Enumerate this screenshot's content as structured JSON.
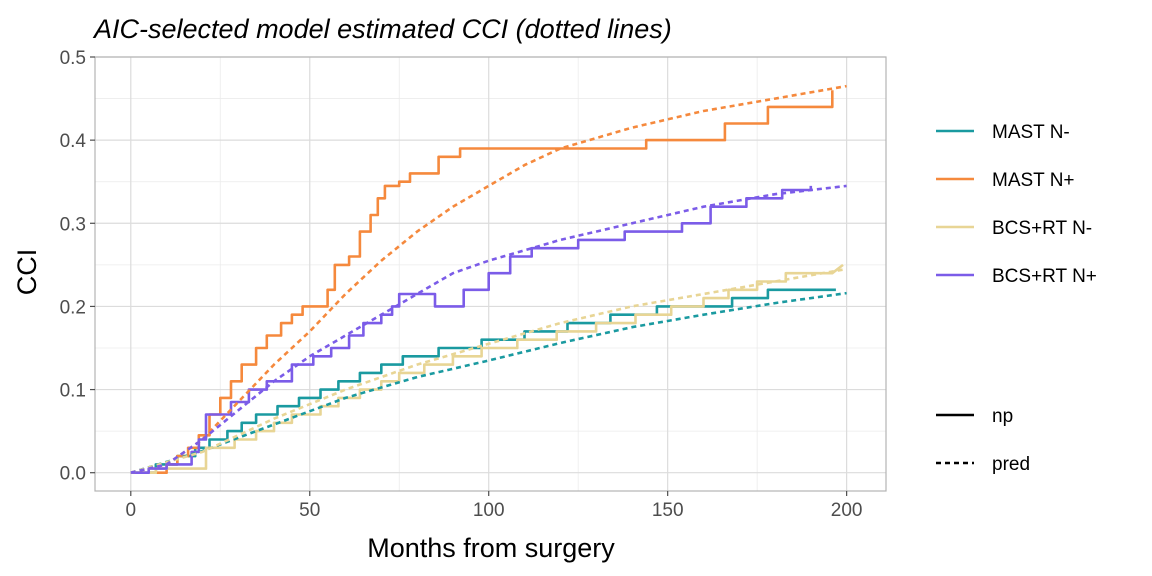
{
  "chart_data": {
    "type": "line",
    "title": "AIC-selected model estimated CCI (dotted lines)",
    "xlabel": "Months from surgery",
    "ylabel": "CCI",
    "xlim": [
      -10,
      211
    ],
    "ylim": [
      -0.022,
      0.5
    ],
    "x_ticks": [
      0,
      50,
      100,
      150,
      200
    ],
    "y_ticks": [
      0.0,
      0.1,
      0.2,
      0.3,
      0.4,
      0.5
    ],
    "x_tick_labels": [
      "0",
      "50",
      "100",
      "150",
      "200"
    ],
    "y_tick_labels": [
      "0.0",
      "0.1",
      "0.2",
      "0.3",
      "0.4",
      "0.5"
    ],
    "grid": true,
    "legend_position": "right",
    "legend_groups": [
      {
        "items": [
          {
            "label": "MAST N-",
            "color": "#1a9aa0",
            "style": "solid"
          },
          {
            "label": "MAST N+",
            "color": "#f5893d",
            "style": "solid"
          },
          {
            "label": "BCS+RT N-",
            "color": "#e8d595",
            "style": "solid"
          },
          {
            "label": "BCS+RT N+",
            "color": "#7b5ce8",
            "style": "solid"
          }
        ]
      },
      {
        "items": [
          {
            "label": "np",
            "color": "#000000",
            "style": "solid"
          },
          {
            "label": "pred",
            "color": "#000000",
            "style": "dashed"
          }
        ]
      }
    ],
    "series": [
      {
        "name": "MAST N-",
        "kind": "np",
        "color": "#1a9aa0",
        "points": [
          [
            0,
            0
          ],
          [
            7,
            0
          ],
          [
            7,
            0.01
          ],
          [
            13,
            0.01
          ],
          [
            13,
            0.02
          ],
          [
            18,
            0.02
          ],
          [
            18,
            0.03
          ],
          [
            22,
            0.03
          ],
          [
            22,
            0.04
          ],
          [
            27,
            0.04
          ],
          [
            27,
            0.05
          ],
          [
            31,
            0.05
          ],
          [
            31,
            0.06
          ],
          [
            35,
            0.06
          ],
          [
            35,
            0.07
          ],
          [
            41,
            0.07
          ],
          [
            41,
            0.08
          ],
          [
            47,
            0.08
          ],
          [
            47,
            0.09
          ],
          [
            53,
            0.09
          ],
          [
            53,
            0.1
          ],
          [
            58,
            0.1
          ],
          [
            58,
            0.11
          ],
          [
            64,
            0.11
          ],
          [
            64,
            0.12
          ],
          [
            70,
            0.12
          ],
          [
            70,
            0.13
          ],
          [
            76,
            0.13
          ],
          [
            76,
            0.14
          ],
          [
            86,
            0.14
          ],
          [
            86,
            0.15
          ],
          [
            98,
            0.15
          ],
          [
            98,
            0.16
          ],
          [
            110,
            0.16
          ],
          [
            110,
            0.17
          ],
          [
            122,
            0.17
          ],
          [
            122,
            0.18
          ],
          [
            134,
            0.18
          ],
          [
            134,
            0.19
          ],
          [
            147,
            0.19
          ],
          [
            147,
            0.2
          ],
          [
            168,
            0.2
          ],
          [
            168,
            0.21
          ],
          [
            178,
            0.21
          ],
          [
            178,
            0.22
          ],
          [
            197,
            0.22
          ]
        ]
      },
      {
        "name": "MAST N+",
        "kind": "np",
        "color": "#f5893d",
        "points": [
          [
            0,
            0
          ],
          [
            10,
            0
          ],
          [
            10,
            0.01
          ],
          [
            13,
            0.01
          ],
          [
            13,
            0.02
          ],
          [
            16,
            0.02
          ],
          [
            16,
            0.03
          ],
          [
            19,
            0.03
          ],
          [
            19,
            0.045
          ],
          [
            22,
            0.045
          ],
          [
            22,
            0.07
          ],
          [
            25,
            0.07
          ],
          [
            25,
            0.09
          ],
          [
            28,
            0.09
          ],
          [
            28,
            0.11
          ],
          [
            31,
            0.11
          ],
          [
            31,
            0.13
          ],
          [
            35,
            0.13
          ],
          [
            35,
            0.15
          ],
          [
            38,
            0.15
          ],
          [
            38,
            0.165
          ],
          [
            42,
            0.165
          ],
          [
            42,
            0.18
          ],
          [
            45,
            0.18
          ],
          [
            45,
            0.19
          ],
          [
            48,
            0.19
          ],
          [
            48,
            0.2
          ],
          [
            55,
            0.2
          ],
          [
            55,
            0.22
          ],
          [
            57,
            0.22
          ],
          [
            57,
            0.25
          ],
          [
            61,
            0.25
          ],
          [
            61,
            0.26
          ],
          [
            64,
            0.26
          ],
          [
            64,
            0.29
          ],
          [
            67,
            0.29
          ],
          [
            67,
            0.31
          ],
          [
            69,
            0.31
          ],
          [
            69,
            0.33
          ],
          [
            71,
            0.33
          ],
          [
            71,
            0.345
          ],
          [
            75,
            0.345
          ],
          [
            75,
            0.35
          ],
          [
            78,
            0.35
          ],
          [
            78,
            0.36
          ],
          [
            86,
            0.36
          ],
          [
            86,
            0.38
          ],
          [
            92,
            0.38
          ],
          [
            92,
            0.39
          ],
          [
            144,
            0.39
          ],
          [
            144,
            0.4
          ],
          [
            166,
            0.4
          ],
          [
            166,
            0.42
          ],
          [
            178,
            0.42
          ],
          [
            178,
            0.44
          ],
          [
            196,
            0.44
          ],
          [
            196,
            0.46
          ]
        ]
      },
      {
        "name": "BCS+RT N-",
        "kind": "np",
        "color": "#e8d595",
        "points": [
          [
            0,
            0
          ],
          [
            7,
            0
          ],
          [
            7,
            0.005
          ],
          [
            21,
            0.005
          ],
          [
            21,
            0.03
          ],
          [
            29,
            0.03
          ],
          [
            29,
            0.04
          ],
          [
            35,
            0.04
          ],
          [
            35,
            0.05
          ],
          [
            40,
            0.05
          ],
          [
            40,
            0.06
          ],
          [
            45,
            0.06
          ],
          [
            45,
            0.07
          ],
          [
            53,
            0.07
          ],
          [
            53,
            0.08
          ],
          [
            58,
            0.08
          ],
          [
            58,
            0.09
          ],
          [
            64,
            0.09
          ],
          [
            64,
            0.1
          ],
          [
            70,
            0.1
          ],
          [
            70,
            0.11
          ],
          [
            75,
            0.11
          ],
          [
            75,
            0.12
          ],
          [
            82,
            0.12
          ],
          [
            82,
            0.13
          ],
          [
            90,
            0.13
          ],
          [
            90,
            0.14
          ],
          [
            98,
            0.14
          ],
          [
            98,
            0.15
          ],
          [
            108,
            0.15
          ],
          [
            108,
            0.16
          ],
          [
            119,
            0.16
          ],
          [
            119,
            0.17
          ],
          [
            130,
            0.17
          ],
          [
            130,
            0.18
          ],
          [
            141,
            0.18
          ],
          [
            141,
            0.19
          ],
          [
            151,
            0.19
          ],
          [
            151,
            0.2
          ],
          [
            160,
            0.2
          ],
          [
            160,
            0.21
          ],
          [
            167,
            0.21
          ],
          [
            167,
            0.22
          ],
          [
            175,
            0.22
          ],
          [
            175,
            0.23
          ],
          [
            183,
            0.23
          ],
          [
            183,
            0.24
          ],
          [
            196,
            0.24
          ],
          [
            199,
            0.25
          ]
        ]
      },
      {
        "name": "BCS+RT N+",
        "kind": "np",
        "color": "#7b5ce8",
        "points": [
          [
            0,
            0
          ],
          [
            5,
            0
          ],
          [
            5,
            0.005
          ],
          [
            10,
            0.005
          ],
          [
            10,
            0.01
          ],
          [
            17,
            0.01
          ],
          [
            17,
            0.025
          ],
          [
            19,
            0.025
          ],
          [
            19,
            0.04
          ],
          [
            21,
            0.04
          ],
          [
            21,
            0.07
          ],
          [
            28,
            0.07
          ],
          [
            28,
            0.085
          ],
          [
            33,
            0.085
          ],
          [
            33,
            0.1
          ],
          [
            38,
            0.1
          ],
          [
            38,
            0.11
          ],
          [
            45,
            0.11
          ],
          [
            45,
            0.13
          ],
          [
            51,
            0.13
          ],
          [
            51,
            0.14
          ],
          [
            56,
            0.14
          ],
          [
            56,
            0.15
          ],
          [
            61,
            0.15
          ],
          [
            61,
            0.165
          ],
          [
            65,
            0.165
          ],
          [
            65,
            0.18
          ],
          [
            70,
            0.18
          ],
          [
            70,
            0.19
          ],
          [
            73,
            0.19
          ],
          [
            73,
            0.2
          ],
          [
            75,
            0.2
          ],
          [
            75,
            0.215
          ],
          [
            85,
            0.215
          ],
          [
            85,
            0.2
          ],
          [
            93,
            0.2
          ],
          [
            93,
            0.22
          ],
          [
            100,
            0.22
          ],
          [
            100,
            0.24
          ],
          [
            106,
            0.24
          ],
          [
            106,
            0.26
          ],
          [
            112,
            0.26
          ],
          [
            112,
            0.27
          ],
          [
            125,
            0.27
          ],
          [
            125,
            0.28
          ],
          [
            138,
            0.28
          ],
          [
            138,
            0.29
          ],
          [
            154,
            0.29
          ],
          [
            154,
            0.3
          ],
          [
            162,
            0.3
          ],
          [
            162,
            0.32
          ],
          [
            172,
            0.32
          ],
          [
            172,
            0.33
          ],
          [
            182,
            0.33
          ],
          [
            182,
            0.34
          ],
          [
            190,
            0.34
          ],
          [
            190,
            0.345
          ]
        ]
      },
      {
        "name": "MAST N-",
        "kind": "pred",
        "color": "#1a9aa0",
        "points": [
          [
            0,
            0
          ],
          [
            20,
            0.026
          ],
          [
            40,
            0.058
          ],
          [
            60,
            0.09
          ],
          [
            80,
            0.115
          ],
          [
            100,
            0.135
          ],
          [
            120,
            0.156
          ],
          [
            140,
            0.175
          ],
          [
            160,
            0.19
          ],
          [
            180,
            0.204
          ],
          [
            200,
            0.216
          ]
        ]
      },
      {
        "name": "MAST N+",
        "kind": "pred",
        "color": "#f5893d",
        "points": [
          [
            0,
            0
          ],
          [
            10,
            0.01
          ],
          [
            20,
            0.04
          ],
          [
            30,
            0.085
          ],
          [
            40,
            0.13
          ],
          [
            50,
            0.17
          ],
          [
            60,
            0.215
          ],
          [
            70,
            0.255
          ],
          [
            80,
            0.29
          ],
          [
            90,
            0.32
          ],
          [
            100,
            0.345
          ],
          [
            110,
            0.37
          ],
          [
            120,
            0.39
          ],
          [
            140,
            0.415
          ],
          [
            160,
            0.435
          ],
          [
            180,
            0.45
          ],
          [
            200,
            0.465
          ]
        ]
      },
      {
        "name": "BCS+RT N-",
        "kind": "pred",
        "color": "#e8d595",
        "points": [
          [
            0,
            0
          ],
          [
            20,
            0.025
          ],
          [
            40,
            0.065
          ],
          [
            60,
            0.1
          ],
          [
            80,
            0.13
          ],
          [
            100,
            0.155
          ],
          [
            120,
            0.18
          ],
          [
            140,
            0.2
          ],
          [
            160,
            0.215
          ],
          [
            180,
            0.23
          ],
          [
            200,
            0.245
          ]
        ]
      },
      {
        "name": "BCS+RT N+",
        "kind": "pred",
        "color": "#7b5ce8",
        "points": [
          [
            0,
            0
          ],
          [
            10,
            0.01
          ],
          [
            20,
            0.04
          ],
          [
            30,
            0.075
          ],
          [
            40,
            0.11
          ],
          [
            50,
            0.14
          ],
          [
            60,
            0.165
          ],
          [
            70,
            0.19
          ],
          [
            80,
            0.215
          ],
          [
            90,
            0.24
          ],
          [
            100,
            0.255
          ],
          [
            120,
            0.28
          ],
          [
            140,
            0.3
          ],
          [
            160,
            0.32
          ],
          [
            180,
            0.335
          ],
          [
            200,
            0.345
          ]
        ]
      }
    ]
  }
}
